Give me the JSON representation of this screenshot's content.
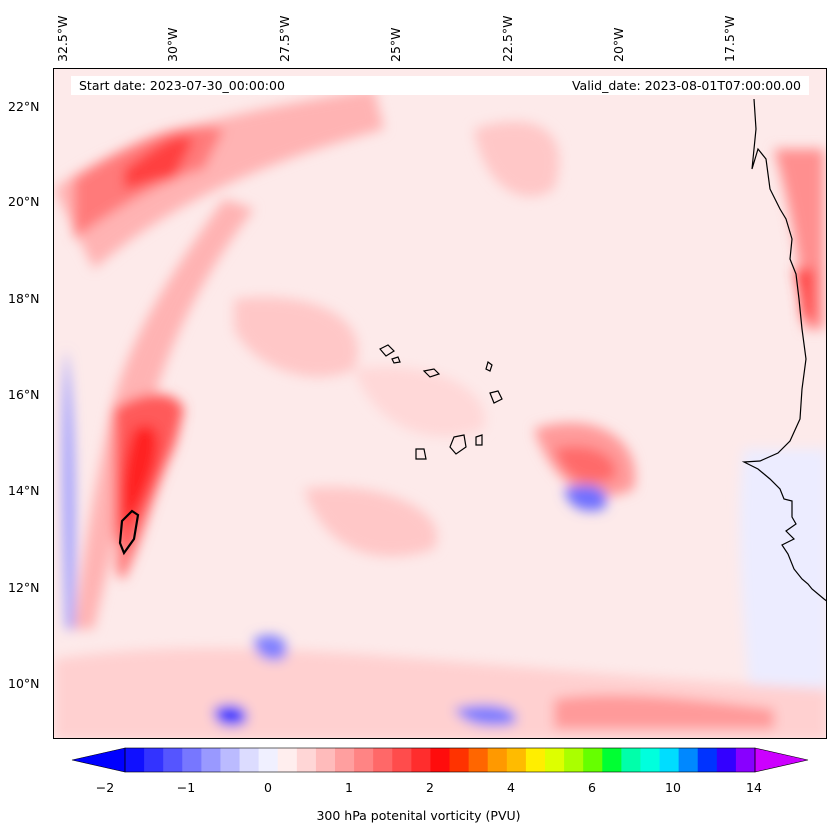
{
  "map": {
    "start_date": "Start date: 2023-07-30_00:00:00",
    "valid_date": "Valid_date: 2023-08-01T07:00:00.00",
    "lon_labels": [
      "32.5°W",
      "30°W",
      "27.5°W",
      "25°W",
      "22.5°W",
      "20°W",
      "17.5°W"
    ],
    "lat_labels": [
      "22°N",
      "20°N",
      "18°N",
      "16°N",
      "14°N",
      "12°N",
      "10°N"
    ],
    "background_color": "#fdeaea",
    "coastline_color": "#000000"
  },
  "colorbar": {
    "title": "300 hPa potenital vorticity (PVU)",
    "tick_labels": [
      "−2",
      "−1",
      "0",
      "1",
      "2",
      "4",
      "6",
      "10",
      "14"
    ],
    "left_arrow_color": "#0000ff",
    "right_arrow_color": "#cc00ff",
    "colors": [
      "#1010ff",
      "#3333ff",
      "#5555ff",
      "#7777ff",
      "#9999ff",
      "#bbbbff",
      "#dcdcff",
      "#f0f0ff",
      "#ffeeee",
      "#ffd6d6",
      "#ffbbbb",
      "#ff9f9f",
      "#ff8484",
      "#ff6868",
      "#ff4c4c",
      "#ff2d2d",
      "#ff0c0c",
      "#ff3300",
      "#ff6600",
      "#ff9900",
      "#ffbb00",
      "#ffee00",
      "#ddff00",
      "#aaff00",
      "#66ff00",
      "#00ff33",
      "#00ffaa",
      "#00ffdd",
      "#00ddff",
      "#0088ff",
      "#0033ff",
      "#3300ff",
      "#8800ff"
    ]
  }
}
